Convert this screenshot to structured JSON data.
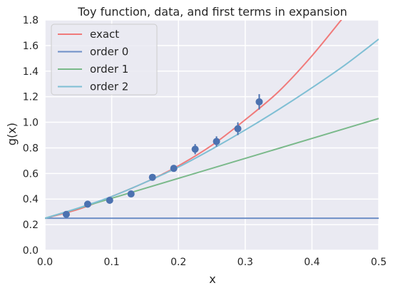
{
  "chart_data": {
    "type": "line",
    "title": "Toy function, data, and first terms in expansion",
    "xlabel": "x",
    "ylabel": "g(x)",
    "xlim": [
      0.0,
      0.5
    ],
    "ylim": [
      0.0,
      1.8
    ],
    "xticks": [
      "0.0",
      "0.1",
      "0.2",
      "0.3",
      "0.4",
      "0.5"
    ],
    "yticks": [
      "0.0",
      "0.2",
      "0.4",
      "0.6",
      "0.8",
      "1.0",
      "1.2",
      "1.4",
      "1.6",
      "1.8"
    ],
    "grid": true,
    "legend_position": "upper-left",
    "background_color": "#eaeaf2",
    "series": [
      {
        "name": "exact",
        "color": "#f07a7a",
        "x": [
          0.0,
          0.05,
          0.1,
          0.15,
          0.2,
          0.25,
          0.3,
          0.35,
          0.4,
          0.45
        ],
        "y": [
          0.25,
          0.32,
          0.42,
          0.53,
          0.66,
          0.82,
          1.02,
          1.24,
          1.52,
          1.84
        ]
      },
      {
        "name": "order 0",
        "color": "#6e8fc7",
        "x": [
          0.0,
          0.5
        ],
        "y": [
          0.25,
          0.25
        ]
      },
      {
        "name": "order 1",
        "color": "#7ab98a",
        "x": [
          0.0,
          0.5
        ],
        "y": [
          0.25,
          1.03
        ]
      },
      {
        "name": "order 2",
        "color": "#7fbfd4",
        "x": [
          0.0,
          0.05,
          0.1,
          0.15,
          0.2,
          0.25,
          0.3,
          0.35,
          0.4,
          0.45,
          0.5
        ],
        "y": [
          0.25,
          0.33,
          0.42,
          0.53,
          0.65,
          0.79,
          0.94,
          1.1,
          1.27,
          1.45,
          1.65
        ]
      }
    ],
    "data_points": {
      "color": "#4c72b0",
      "x": [
        0.032,
        0.064,
        0.097,
        0.129,
        0.161,
        0.193,
        0.225,
        0.257,
        0.289,
        0.321
      ],
      "y": [
        0.28,
        0.36,
        0.39,
        0.44,
        0.57,
        0.64,
        0.79,
        0.85,
        0.95,
        1.16
      ],
      "yerr": [
        0.01,
        0.01,
        0.01,
        0.01,
        0.01,
        0.02,
        0.04,
        0.04,
        0.05,
        0.06
      ]
    }
  }
}
